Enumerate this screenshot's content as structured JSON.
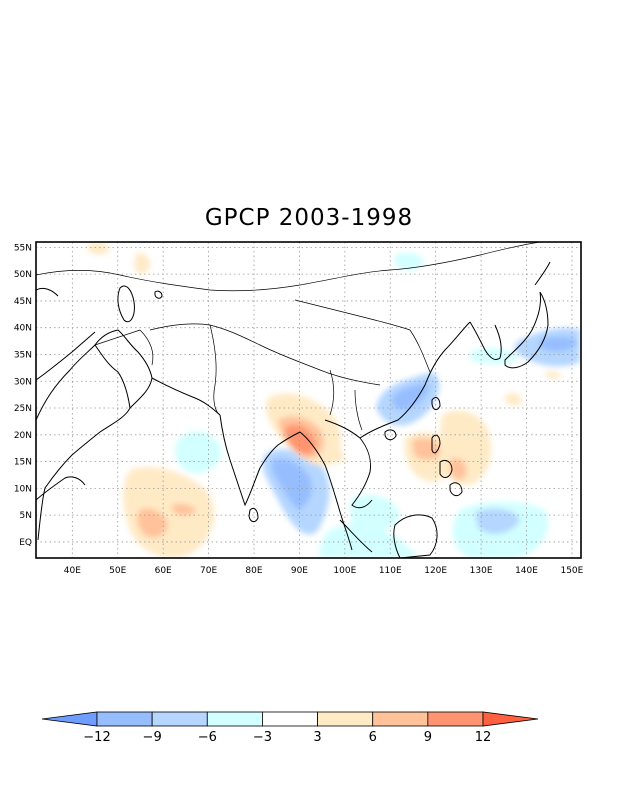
{
  "title": "GPCP 2003-1998",
  "map": {
    "lon_range": [
      32,
      152
    ],
    "lat_range": [
      -3,
      56
    ],
    "lon_ticks": [
      "40E",
      "50E",
      "60E",
      "70E",
      "80E",
      "90E",
      "100E",
      "110E",
      "120E",
      "130E",
      "140E",
      "150E"
    ],
    "lat_ticks": [
      "EQ",
      "5N",
      "10N",
      "15N",
      "20N",
      "25N",
      "30N",
      "35N",
      "40N",
      "45N",
      "50N",
      "55N"
    ],
    "grid": "dotted"
  },
  "colorbar": {
    "labels": [
      "−12",
      "−9",
      "−6",
      "−3",
      "3",
      "6",
      "9",
      "12"
    ],
    "colors": [
      "#6e9cff",
      "#96beff",
      "#b4d6ff",
      "#d2ffff",
      "#ffffff",
      "#ffeac6",
      "#ffc29a",
      "#ff9470",
      "#ff6040"
    ]
  }
}
